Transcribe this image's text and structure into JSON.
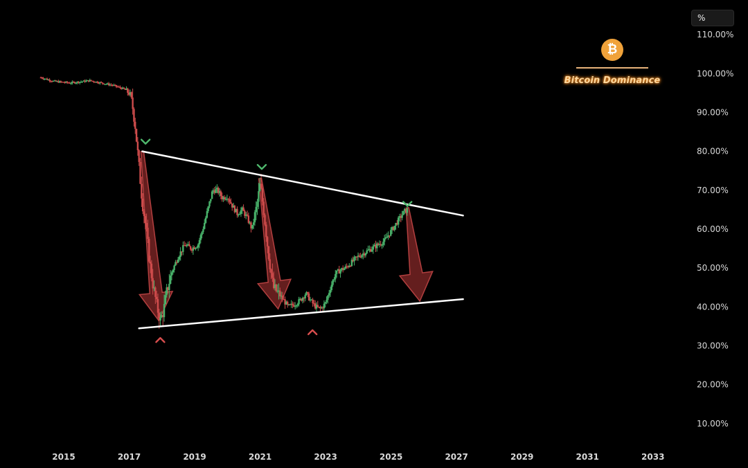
{
  "header": {
    "unit_label": "%",
    "logo_icon": "bitcoin-logo-icon",
    "logo_symbol": "₿",
    "logo_text": "Bitcoin Dominance"
  },
  "chart_data": {
    "type": "candlestick",
    "ylim": [
      5,
      115
    ],
    "xlim": [
      2013.9,
      2034.0
    ],
    "y_ticks": [
      "110.00%",
      "100.00%",
      "90.00%",
      "80.00%",
      "70.00%",
      "60.00%",
      "50.00%",
      "40.00%",
      "30.00%",
      "20.00%",
      "10.00%"
    ],
    "y_tick_values": [
      110,
      100,
      90,
      80,
      70,
      60,
      50,
      40,
      30,
      20,
      10
    ],
    "x_ticks": [
      "2015",
      "2017",
      "2019",
      "2021",
      "2023",
      "2025",
      "2027",
      "2029",
      "2031",
      "2033"
    ],
    "x_tick_values": [
      2015,
      2017,
      2019,
      2021,
      2023,
      2025,
      2027,
      2029,
      2031,
      2033
    ],
    "grid": false,
    "price_path": [
      [
        2014.3,
        99.0
      ],
      [
        2014.7,
        98.0
      ],
      [
        2015.2,
        97.6
      ],
      [
        2015.8,
        98.2
      ],
      [
        2016.5,
        97.0
      ],
      [
        2016.85,
        96.0
      ],
      [
        2017.05,
        94.5
      ],
      [
        2017.18,
        87.0
      ],
      [
        2017.3,
        76.0
      ],
      [
        2017.4,
        67.0
      ],
      [
        2017.52,
        60.0
      ],
      [
        2017.62,
        52.0
      ],
      [
        2017.72,
        46.0
      ],
      [
        2017.85,
        40.0
      ],
      [
        2017.95,
        36.5
      ],
      [
        2018.05,
        39.0
      ],
      [
        2018.15,
        44.0
      ],
      [
        2018.3,
        49.0
      ],
      [
        2018.5,
        53.0
      ],
      [
        2018.7,
        56.0
      ],
      [
        2018.9,
        55.0
      ],
      [
        2019.1,
        56.0
      ],
      [
        2019.25,
        60.0
      ],
      [
        2019.4,
        65.0
      ],
      [
        2019.55,
        70.0
      ],
      [
        2019.7,
        70.0
      ],
      [
        2019.85,
        68.0
      ],
      [
        2020.0,
        68.5
      ],
      [
        2020.15,
        66.0
      ],
      [
        2020.3,
        64.0
      ],
      [
        2020.45,
        65.0
      ],
      [
        2020.6,
        63.0
      ],
      [
        2020.75,
        60.0
      ],
      [
        2020.9,
        66.0
      ],
      [
        2021.0,
        71.5
      ],
      [
        2021.12,
        64.0
      ],
      [
        2021.25,
        54.0
      ],
      [
        2021.4,
        45.0
      ],
      [
        2021.55,
        43.5
      ],
      [
        2021.7,
        42.0
      ],
      [
        2021.85,
        40.0
      ],
      [
        2022.0,
        40.5
      ],
      [
        2022.2,
        41.5
      ],
      [
        2022.4,
        43.5
      ],
      [
        2022.55,
        41.5
      ],
      [
        2022.7,
        40.0
      ],
      [
        2022.85,
        39.5
      ],
      [
        2023.0,
        41.0
      ],
      [
        2023.15,
        45.0
      ],
      [
        2023.3,
        48.5
      ],
      [
        2023.45,
        49.5
      ],
      [
        2023.6,
        50.0
      ],
      [
        2023.8,
        51.5
      ],
      [
        2024.0,
        53.0
      ],
      [
        2024.2,
        54.0
      ],
      [
        2024.4,
        55.0
      ],
      [
        2024.6,
        56.0
      ],
      [
        2024.8,
        57.0
      ],
      [
        2025.0,
        59.5
      ],
      [
        2025.2,
        62.0
      ],
      [
        2025.4,
        64.5
      ],
      [
        2025.5,
        65.0
      ]
    ],
    "trendlines": [
      {
        "name": "upper",
        "from": [
          2017.4,
          80.0
        ],
        "to": [
          2027.2,
          63.5
        ],
        "color": "#ffffff"
      },
      {
        "name": "lower",
        "from": [
          2017.3,
          34.5
        ],
        "to": [
          2027.2,
          42.0
        ],
        "color": "#ffffff"
      }
    ],
    "down_arrows": [
      {
        "from": [
          2017.4,
          80.0
        ],
        "to": [
          2017.9,
          36.5
        ]
      },
      {
        "from": [
          2021.0,
          73.0
        ],
        "to": [
          2021.55,
          39.5
        ]
      },
      {
        "from": [
          2025.5,
          65.5
        ],
        "to": [
          2025.88,
          41.5
        ]
      }
    ],
    "top_markers": [
      {
        "x": 2017.5,
        "y": 82.5
      },
      {
        "x": 2021.05,
        "y": 76.0
      },
      {
        "x": 2025.5,
        "y": 66.5
      }
    ],
    "bottom_markers": [
      {
        "x": 2017.95,
        "y": 31.5
      },
      {
        "x": 2022.6,
        "y": 33.5
      }
    ],
    "colors": {
      "up": "#49b36b",
      "down": "#cf4c4c",
      "arrow_fill": "#8b2a2a",
      "arrow_stroke": "#c04545",
      "top_marker": "#4fb86d",
      "bottom_marker": "#d94e4e",
      "trendline": "#ffffff",
      "background": "#000000"
    }
  }
}
